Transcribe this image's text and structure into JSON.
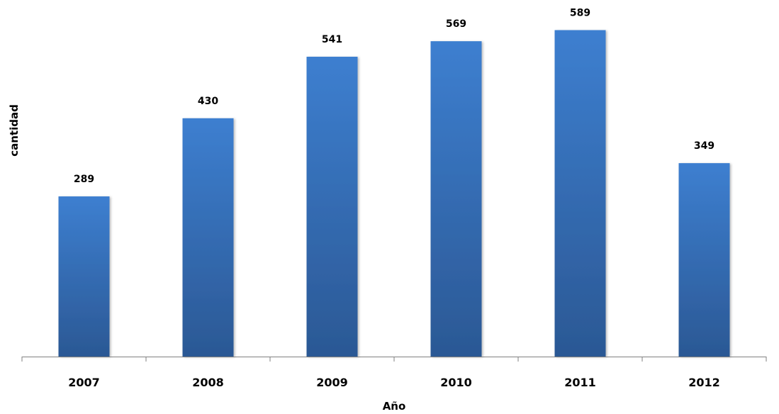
{
  "chart_data": {
    "type": "bar",
    "title": "",
    "xlabel": "Año",
    "ylabel": "cantidad",
    "categories": [
      "2007",
      "2008",
      "2009",
      "2010",
      "2011",
      "2012"
    ],
    "values": [
      289,
      430,
      541,
      569,
      589,
      349
    ],
    "value_labels": [
      "289",
      "430",
      "541",
      "569",
      "589",
      "349"
    ],
    "ylim": [
      0,
      628
    ],
    "grid": false,
    "legend": "none",
    "bar_color_top": "#3d7fd0",
    "bar_color_bottom": "#2b5894"
  }
}
